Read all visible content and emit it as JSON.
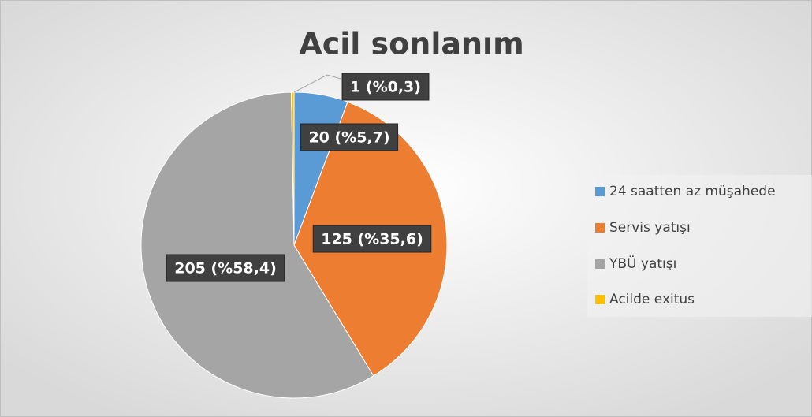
{
  "chart_data": {
    "type": "pie",
    "title": "Acil sonlanım",
    "categories": [
      "24 saatten az müşahede",
      "Servis yatışı",
      "YBÜ yatışı",
      "Acilde exitus"
    ],
    "values": [
      20,
      125,
      205,
      1
    ],
    "value_labels": [
      "20 (%5,7)",
      "125 (%35,6)",
      "205 (%58,4)",
      "1 (%0,3)"
    ],
    "colors": [
      "#5b9bd5",
      "#ed7d31",
      "#a5a5a5",
      "#ffc000"
    ],
    "legend": "right"
  }
}
